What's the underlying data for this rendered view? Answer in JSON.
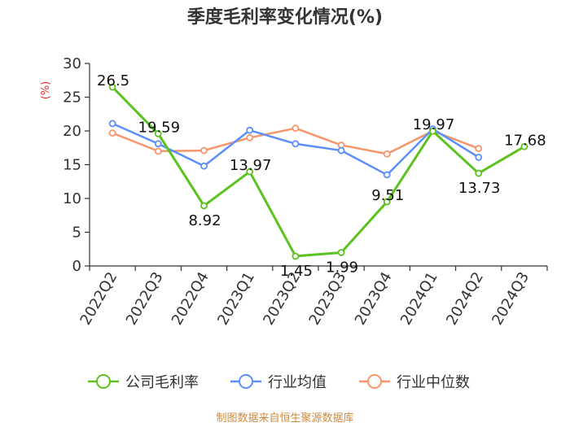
{
  "chart_data": {
    "type": "line",
    "title": "季度毛利率变化情况(%)",
    "ylabel": "(%)",
    "ylim": [
      0,
      30
    ],
    "yticks": [
      0,
      5,
      10,
      15,
      20,
      25,
      30
    ],
    "categories": [
      "2022Q2",
      "2022Q3",
      "2022Q4",
      "2023Q1",
      "2023Q2",
      "2023Q3",
      "2023Q4",
      "2024Q1",
      "2024Q2",
      "2024Q3"
    ],
    "series": [
      {
        "name": "公司毛利率",
        "color": "#5cc21f",
        "values": [
          26.5,
          19.59,
          8.92,
          13.97,
          1.45,
          1.99,
          9.51,
          19.97,
          13.73,
          17.68
        ],
        "labels": [
          "26.5",
          "19.59",
          "8.92",
          "13.97",
          "1.45",
          "1.99",
          "9.51",
          "19.97",
          "13.73",
          "17.68"
        ]
      },
      {
        "name": "行业均值",
        "color": "#5b8ff9",
        "values": [
          21.1,
          18.1,
          14.8,
          20.1,
          18.1,
          17.1,
          13.5,
          20.3,
          16.1,
          null
        ]
      },
      {
        "name": "行业中位数",
        "color": "#f7956b",
        "values": [
          19.7,
          17.0,
          17.1,
          19.0,
          20.4,
          17.9,
          16.6,
          20.0,
          17.4,
          null
        ]
      }
    ],
    "legend_position": "bottom",
    "grid": false
  },
  "source": "制图数据来自恒生聚源数据库"
}
